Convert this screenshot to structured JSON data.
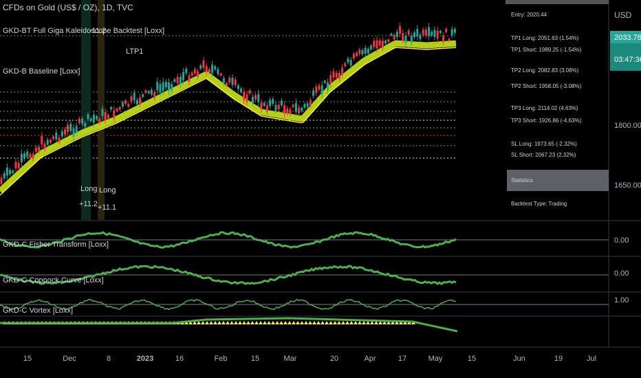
{
  "header": {
    "title": "CFDs on Gold (US$ / OZ), 1D, TVC",
    "indicators": [
      "GKD-BT Full Giga Kaleidoscope Backtest [Loxx]",
      "GKD-B Baseline [Loxx]"
    ]
  },
  "chart_labels": {
    "ltp1": "LTP1",
    "short_tp": "-11.2",
    "long1": "Long",
    "long1_pnl": "+11.2",
    "long2": "Long",
    "long2_pnl": "+11.1"
  },
  "panels": [
    "GKD-C Fisher Transform [Loxx]",
    "GKD-C Coppock Curve [Loxx]",
    "GKD-C Vortex [Loxx]"
  ],
  "price_axis": {
    "currency": "USD",
    "last_price": "2033.78",
    "countdown": "03:47:36",
    "labels": [
      "1800.00",
      "1650.00"
    ],
    "panel_labels": [
      "0.00",
      "0.00",
      "1.00"
    ]
  },
  "stats": {
    "entry": "Entry: 2020.44",
    "targets": [
      "TP1 Long: 2051.63 (1.54%)",
      "TP1 Short: 1989.25 (-1.54%)",
      "TP2 Long: 2082.83 (3.08%)",
      "TP2 Short: 1958.05 (-3.08%)",
      "TP3 Long: 2114.02 (4.63%)",
      "TP3 Short: 1926.86 (-4.63%)",
      "SL Long: 1973.65 (-2.32%)",
      "SL Short: 2067.23 (2.32%)"
    ],
    "section": "Statistics",
    "backtest_type": "Backtest Type: Trading"
  },
  "time_axis": [
    "15",
    "Dec",
    "8",
    "2023",
    "16",
    "Feb",
    "15",
    "Mar",
    "20",
    "Apr",
    "17",
    "May",
    "15",
    "Jun",
    "19",
    "Jul"
  ]
}
